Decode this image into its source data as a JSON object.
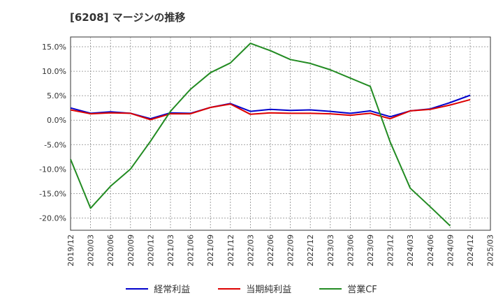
{
  "chart_data": {
    "type": "line",
    "title": "[6208]  マージンの推移",
    "x": [
      "2019/12",
      "2020/03",
      "2020/06",
      "2020/09",
      "2020/12",
      "2021/03",
      "2021/06",
      "2021/09",
      "2021/12",
      "2022/03",
      "2022/06",
      "2022/09",
      "2022/12",
      "2023/03",
      "2023/06",
      "2023/09",
      "2023/12",
      "2024/03",
      "2024/06",
      "2024/09",
      "2024/12",
      "2025/03"
    ],
    "ylim": [
      -22.5,
      17.0
    ],
    "yticks": [
      15.0,
      10.0,
      5.0,
      0.0,
      -5.0,
      -10.0,
      -15.0,
      -20.0
    ],
    "ytick_labels": [
      "15.0%",
      "10.0%",
      "5.0%",
      "0.0%",
      "-5.0%",
      "-10.0%",
      "-15.0%",
      "-20.0%"
    ],
    "grid": true,
    "legend_position": "bottom",
    "series": [
      {
        "name": "経常利益",
        "color": "#0000cc",
        "values": [
          2.5,
          1.4,
          1.7,
          1.4,
          0.3,
          1.5,
          1.4,
          2.6,
          3.4,
          1.8,
          2.2,
          2.0,
          2.1,
          1.8,
          1.4,
          1.9,
          0.7,
          1.9,
          2.3,
          3.6,
          5.1,
          null
        ]
      },
      {
        "name": "当期純利益",
        "color": "#dd0000",
        "values": [
          2.1,
          1.3,
          1.5,
          1.4,
          0.1,
          1.3,
          1.3,
          2.6,
          3.3,
          1.2,
          1.5,
          1.4,
          1.4,
          1.3,
          1.0,
          1.4,
          0.3,
          1.9,
          2.2,
          3.1,
          4.2,
          null
        ]
      },
      {
        "name": "営業CF",
        "color": "#228b22",
        "values": [
          -8.0,
          -18.0,
          -13.5,
          -10.0,
          -4.3,
          1.8,
          6.3,
          9.7,
          11.7,
          15.7,
          14.2,
          12.4,
          11.6,
          10.3,
          8.6,
          6.9,
          -4.5,
          -13.9,
          -17.7,
          -21.6,
          null,
          null
        ]
      }
    ]
  }
}
